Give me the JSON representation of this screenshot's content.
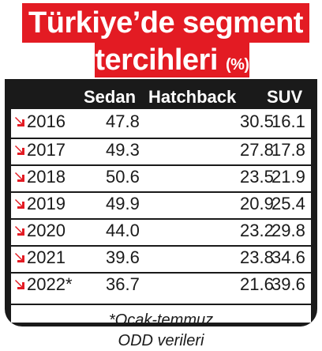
{
  "title": {
    "line1": "Türkiye’de segment",
    "line2": "tercihleri",
    "unit": "(%)"
  },
  "colors": {
    "accent": "#e31b23",
    "panel": "#1a1a1a",
    "text": "#1a1a1a"
  },
  "icon": "down-arrow-icon",
  "chart_data": {
    "type": "table",
    "columns": [
      "Sedan",
      "Hatchback",
      "SUV"
    ],
    "rows": [
      {
        "year": "2016",
        "values": [
          "47.8",
          "30.5",
          "16.1"
        ]
      },
      {
        "year": "2017",
        "values": [
          "49.3",
          "27.8",
          "17.8"
        ]
      },
      {
        "year": "2018",
        "values": [
          "50.6",
          "23.5",
          "21.9"
        ]
      },
      {
        "year": "2019",
        "values": [
          "49.9",
          "20.9",
          "25.4"
        ]
      },
      {
        "year": "2020",
        "values": [
          "44.0",
          "23.2",
          "29.8"
        ]
      },
      {
        "year": "2021",
        "values": [
          "39.6",
          "23.8",
          "34.6"
        ]
      },
      {
        "year": "2022*",
        "values": [
          "36.7",
          "21.6",
          "39.6"
        ]
      }
    ]
  },
  "note": {
    "line1": "*Ocak-temmuz",
    "line2": "ODD verileri"
  }
}
